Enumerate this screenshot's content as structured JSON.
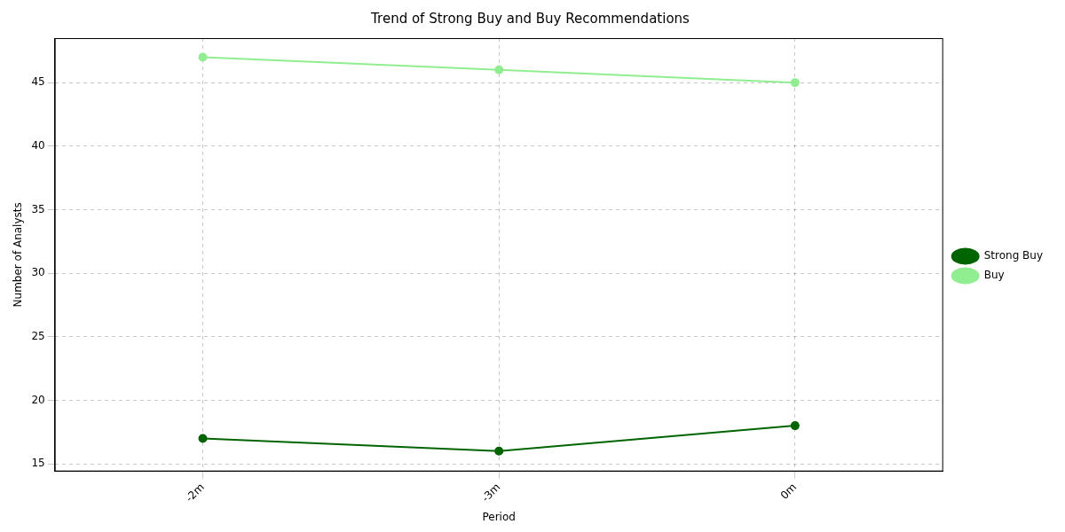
{
  "chart_data": {
    "type": "line",
    "title": "Trend of Strong Buy and Buy Recommendations",
    "x_label": "Period",
    "y_label": "Number of Analysts",
    "categories": [
      "-2m",
      "-3m",
      "0m"
    ],
    "series": [
      {
        "name": "Strong Buy",
        "color": "#006400",
        "values": [
          17,
          16,
          18
        ],
        "marker": "o",
        "line_style": "solid"
      },
      {
        "name": "Buy",
        "color": "#90ee90",
        "values": [
          47,
          46,
          45
        ],
        "marker": "o",
        "line_style": "solid"
      }
    ],
    "ylim": [
      14.4,
      48.5
    ],
    "yticks": [
      15,
      20,
      25,
      30,
      35,
      40,
      45
    ],
    "grid": true,
    "legend": "right"
  }
}
